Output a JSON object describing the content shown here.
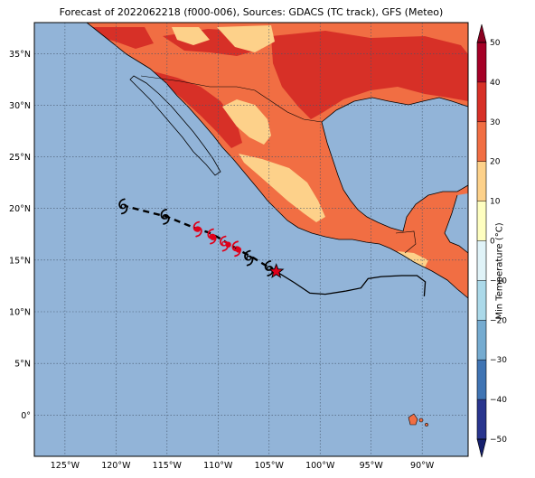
{
  "title": "Forecast of 2022062218 (f000-006), Sources: GDACS (TC track), GFS (Meteo)",
  "map": {
    "extent": {
      "lon": [
        -128,
        -85.5
      ],
      "lat": [
        -4,
        38
      ]
    },
    "x_ticks": [
      {
        "lon": -125,
        "label": "125°W"
      },
      {
        "lon": -120,
        "label": "120°W"
      },
      {
        "lon": -115,
        "label": "115°W"
      },
      {
        "lon": -110,
        "label": "110°W"
      },
      {
        "lon": -105,
        "label": "105°W"
      },
      {
        "lon": -100,
        "label": "100°W"
      },
      {
        "lon": -95,
        "label": "95°W"
      },
      {
        "lon": -90,
        "label": "90°W"
      }
    ],
    "y_ticks": [
      {
        "lat": 35,
        "label": "35°N"
      },
      {
        "lat": 30,
        "label": "30°N"
      },
      {
        "lat": 25,
        "label": "25°N"
      },
      {
        "lat": 20,
        "label": "20°N"
      },
      {
        "lat": 15,
        "label": "15°N"
      },
      {
        "lat": 10,
        "label": "10°N"
      },
      {
        "lat": 5,
        "label": "5°N"
      },
      {
        "lat": 0,
        "label": "0°"
      }
    ],
    "ocean_color": "#92b4d8",
    "land_base_color": "#f16e43"
  },
  "colorbar": {
    "label": "Min Temperature (°C)",
    "levels": [
      -50,
      -40,
      -30,
      -20,
      -10,
      0,
      10,
      20,
      30,
      40,
      50
    ],
    "colors": [
      "#29358e",
      "#3f74b3",
      "#75abd0",
      "#abd9e9",
      "#e0f3f8",
      "#fefec0",
      "#fdd18a",
      "#f16e43",
      "#d73027",
      "#a50026"
    ],
    "under_color": "#16206e",
    "over_color": "#8a0020"
  },
  "track": {
    "past": [
      {
        "lon": -104.3,
        "lat": 13.9
      },
      {
        "lon": -105.2,
        "lat": 14.4
      },
      {
        "lon": -106.5,
        "lat": 15.2
      },
      {
        "lon": -108.0,
        "lat": 16.0
      },
      {
        "lon": -109.0,
        "lat": 16.6
      },
      {
        "lon": -110.0,
        "lat": 17.2
      },
      {
        "lon": -111.0,
        "lat": 17.7
      },
      {
        "lon": -112.0,
        "lat": 18.0
      },
      {
        "lon": -115.0,
        "lat": 19.2
      },
      {
        "lon": -119.0,
        "lat": 20.2
      }
    ],
    "storm_symbols": [
      {
        "lon": -105.0,
        "lat": 14.2,
        "color": "#000000"
      },
      {
        "lon": -107.0,
        "lat": 15.2,
        "color": "#000000"
      },
      {
        "lon": -108.2,
        "lat": 16.1,
        "color": "#e0001a"
      },
      {
        "lon": -109.4,
        "lat": 16.6,
        "color": "#e0001a"
      },
      {
        "lon": -110.6,
        "lat": 17.3,
        "color": "#e0001a"
      },
      {
        "lon": -112.0,
        "lat": 18.0,
        "color": "#e0001a"
      },
      {
        "lon": -115.2,
        "lat": 19.2,
        "color": "#000000"
      },
      {
        "lon": -119.3,
        "lat": 20.2,
        "color": "#000000"
      }
    ],
    "red_dots": [
      {
        "lon": -108.0,
        "lat": 16.0
      },
      {
        "lon": -109.0,
        "lat": 16.5
      },
      {
        "lon": -110.5,
        "lat": 17.2
      },
      {
        "lon": -112.0,
        "lat": 18.0
      }
    ],
    "current_position": {
      "lon": -104.3,
      "lat": 13.9
    },
    "forecast_future": [
      {
        "lon": -104.3,
        "lat": 13.9
      },
      {
        "lon": -102.5,
        "lat": 12.8
      },
      {
        "lon": -101.0,
        "lat": 11.8
      },
      {
        "lon": -99.5,
        "lat": 11.7
      },
      {
        "lon": -97.5,
        "lat": 12.0
      },
      {
        "lon": -96.0,
        "lat": 12.3
      },
      {
        "lon": -95.3,
        "lat": 13.2
      },
      {
        "lon": -94.0,
        "lat": 13.4
      },
      {
        "lon": -92.0,
        "lat": 13.5
      },
      {
        "lon": -90.5,
        "lat": 13.5
      },
      {
        "lon": -89.7,
        "lat": 12.9
      },
      {
        "lon": -89.8,
        "lat": 11.5
      }
    ]
  }
}
